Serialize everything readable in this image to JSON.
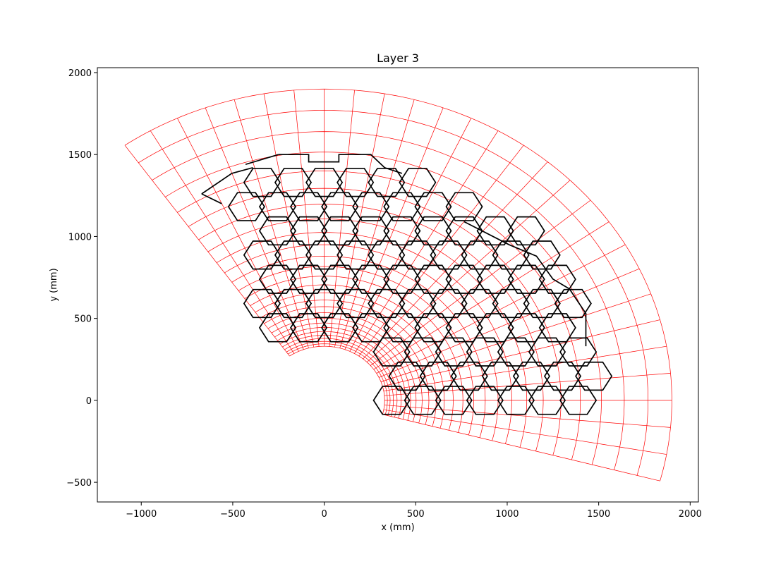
{
  "chart_data": {
    "type": "line",
    "title": "Layer 3",
    "xlabel": "x (mm)",
    "ylabel": "y (mm)",
    "xlim": [
      -1240,
      2045
    ],
    "ylim": [
      -620,
      2030
    ],
    "xticks": [
      -1000,
      -500,
      0,
      500,
      1000,
      1500,
      2000
    ],
    "yticks": [
      -500,
      0,
      500,
      1000,
      1500,
      2000
    ],
    "xtick_labels": [
      "−1000",
      "−500",
      "0",
      "500",
      "1000",
      "1500",
      "2000"
    ],
    "ytick_labels": [
      "−500",
      "0",
      "500",
      "1000",
      "1500",
      "2000"
    ],
    "grid": false,
    "series": [
      {
        "kind": "polar-mesh",
        "color": "#ff0000",
        "angle_range_deg": [
          -15,
          125
        ],
        "angle_step_deg": 5,
        "radii": [
          330,
          345,
          360,
          378,
          398,
          420,
          445,
          472,
          502,
          535,
          572,
          612,
          656,
          705,
          758,
          817,
          880,
          950,
          1025,
          1107,
          1197,
          1294,
          1400,
          1515,
          1640,
          1770,
          1900
        ]
      },
      {
        "kind": "hexagonal-modules",
        "color": "#000000",
        "hex_side_mm": 98.5,
        "rows": [
          {
            "y": 0,
            "x": [
              368,
              538,
              708,
              878,
              1048,
              1218,
              1388
            ]
          },
          {
            "y": 147.7,
            "x": [
              453,
              623,
              793,
              963,
              1133,
              1303,
              1473
            ]
          },
          {
            "y": 295.5,
            "x": [
              368,
              538,
              708,
              878,
              1048,
              1218,
              1388
            ]
          },
          {
            "y": 443.2,
            "x": [
              -255,
              -85,
              85,
              255,
              425,
              595,
              765,
              935,
              1105,
              1275
            ]
          },
          {
            "y": 591,
            "x": [
              -340,
              -170,
              0,
              170,
              340,
              510,
              680,
              850,
              1020,
              1190,
              1360
            ]
          },
          {
            "y": 738.7,
            "x": [
              -255,
              -85,
              85,
              255,
              425,
              595,
              765,
              935,
              1105,
              1275
            ]
          },
          {
            "y": 886.5,
            "x": [
              -340,
              -170,
              0,
              170,
              340,
              510,
              680,
              850,
              1020,
              1190
            ]
          },
          {
            "y": 1034.2,
            "x": [
              -255,
              -85,
              85,
              255,
              425,
              595,
              765,
              935,
              1105
            ]
          },
          {
            "y": 1182,
            "x": [
              -425,
              -255,
              -85,
              85,
              255,
              425,
              595,
              765
            ]
          },
          {
            "y": 1329.7,
            "x": [
              -340,
              -170,
              0,
              170,
              340,
              510
            ]
          }
        ],
        "outline_segments": [
          [
            [
              -670,
              1260
            ],
            [
              -505,
              1385
            ],
            [
              -390,
              1420
            ]
          ],
          [
            [
              -250,
              1500
            ],
            [
              -85,
              1500
            ],
            [
              -85,
              1455
            ],
            [
              80,
              1455
            ],
            [
              80,
              1500
            ],
            [
              255,
              1500
            ],
            [
              330,
              1420
            ],
            [
              425,
              1385
            ]
          ],
          [
            [
              765,
              1090
            ],
            [
              1010,
              950
            ],
            [
              1160,
              880
            ],
            [
              1250,
              740
            ],
            [
              1340,
              680
            ],
            [
              1430,
              530
            ],
            [
              1430,
              330
            ]
          ],
          [
            [
              -430,
              1440
            ],
            [
              -250,
              1500
            ]
          ],
          [
            [
              -670,
              1260
            ],
            [
              -560,
              1200
            ]
          ]
        ]
      }
    ]
  }
}
